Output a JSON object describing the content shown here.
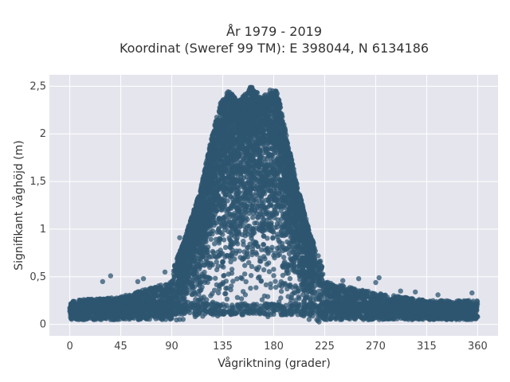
{
  "chart_data": {
    "type": "scatter",
    "title": "År 1979 - 2019",
    "subtitle": "Koordinat (Sweref 99 TM): E 398044, N 6134186",
    "xlabel": "Vågriktning (grader)",
    "ylabel": "Signifikant våghöjd (m)",
    "xlim": [
      -18,
      378
    ],
    "ylim": [
      -0.12,
      2.62
    ],
    "x_ticks": [
      0,
      45,
      90,
      135,
      180,
      225,
      270,
      315,
      360
    ],
    "x_tick_labels": [
      "0",
      "45",
      "90",
      "135",
      "180",
      "225",
      "270",
      "315",
      "360"
    ],
    "y_ticks": [
      0,
      0.5,
      1,
      1.5,
      2,
      2.5
    ],
    "y_tick_labels": [
      "0",
      "0,5",
      "1",
      "1,5",
      "2",
      "2,5"
    ],
    "grid": true,
    "legend": "none",
    "series": [
      {
        "color": "#2d5670",
        "envelope": [
          {
            "x": 0,
            "y_max": 0.3
          },
          {
            "x": 45,
            "y_max": 0.35
          },
          {
            "x": 90,
            "y_max": 0.55
          },
          {
            "x": 100,
            "y_max": 0.85
          },
          {
            "x": 115,
            "y_max": 1.4
          },
          {
            "x": 125,
            "y_max": 1.95
          },
          {
            "x": 132,
            "y_max": 2.3
          },
          {
            "x": 140,
            "y_max": 2.45
          },
          {
            "x": 150,
            "y_max": 2.35
          },
          {
            "x": 160,
            "y_max": 2.5
          },
          {
            "x": 170,
            "y_max": 2.4
          },
          {
            "x": 178,
            "y_max": 2.47
          },
          {
            "x": 183,
            "y_max": 2.45
          },
          {
            "x": 190,
            "y_max": 2.05
          },
          {
            "x": 200,
            "y_max": 1.5
          },
          {
            "x": 212,
            "y_max": 0.95
          },
          {
            "x": 225,
            "y_max": 0.55
          },
          {
            "x": 270,
            "y_max": 0.4
          },
          {
            "x": 315,
            "y_max": 0.3
          },
          {
            "x": 360,
            "y_max": 0.3
          }
        ],
        "outliers": [
          {
            "x": 36,
            "y": 0.51
          },
          {
            "x": 29,
            "y": 0.45
          },
          {
            "x": 60,
            "y": 0.45
          },
          {
            "x": 65,
            "y": 0.48
          },
          {
            "x": 84,
            "y": 0.55
          },
          {
            "x": 93,
            "y": 0.57
          },
          {
            "x": 97,
            "y": 0.91
          },
          {
            "x": 105,
            "y": 0.95
          },
          {
            "x": 241,
            "y": 0.46
          },
          {
            "x": 255,
            "y": 0.48
          },
          {
            "x": 270,
            "y": 0.44
          },
          {
            "x": 273,
            "y": 0.49
          },
          {
            "x": 292,
            "y": 0.35
          },
          {
            "x": 305,
            "y": 0.34
          },
          {
            "x": 325,
            "y": 0.31
          },
          {
            "x": 355,
            "y": 0.33
          }
        ]
      }
    ]
  },
  "colors": {
    "plot_background": "#e5e5ee",
    "grid": "#ffffff",
    "marker": "#2d5670"
  }
}
